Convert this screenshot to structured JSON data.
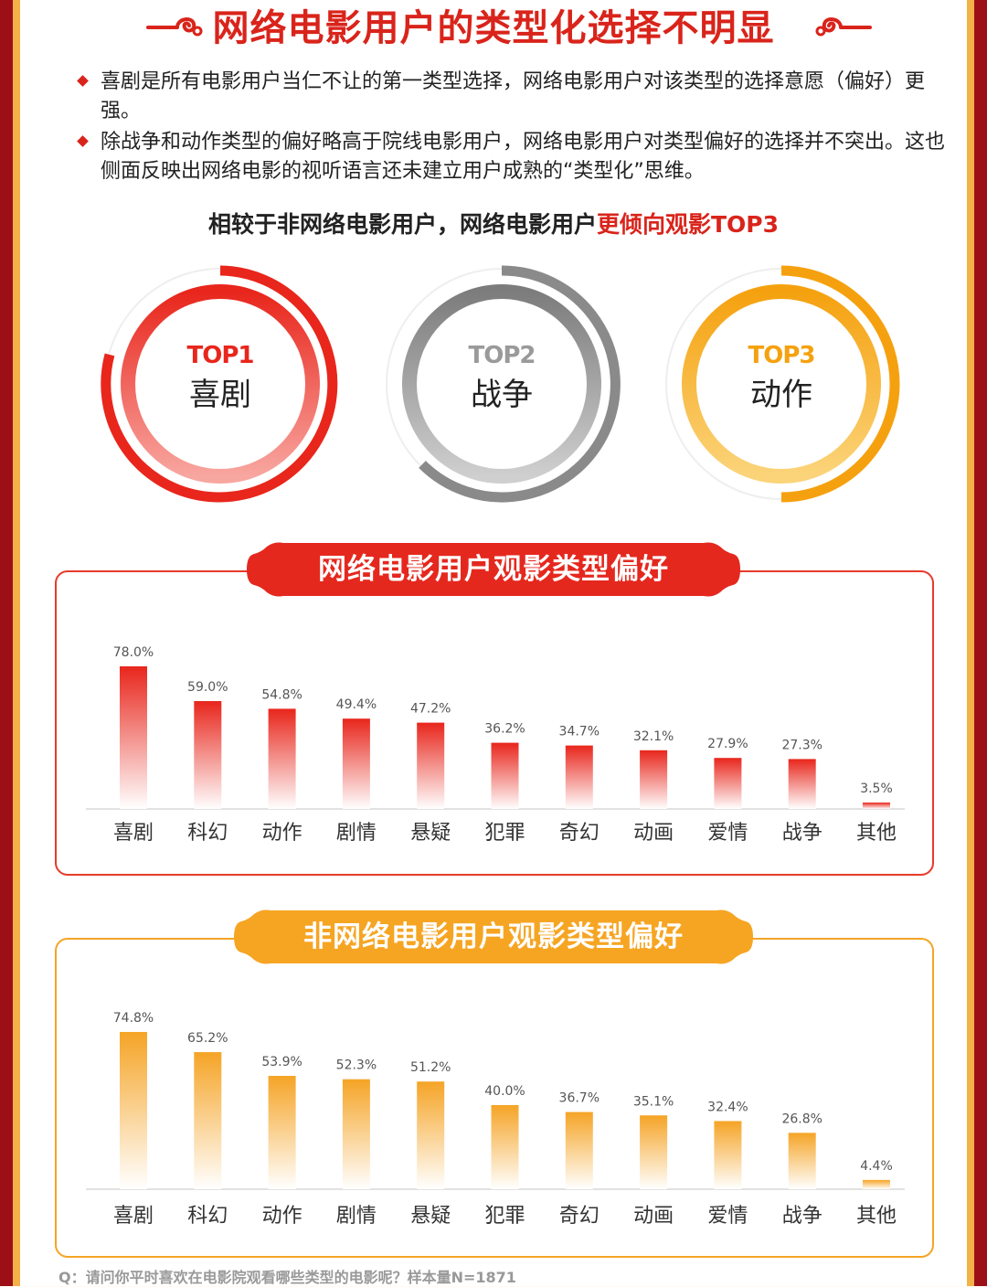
{
  "header": {
    "title": "网络电影用户的类型化选择不明显"
  },
  "bullets": [
    "喜剧是所有电影用户当仁不让的第一类型选择，网络电影用户对该类型的选择意愿（偏好）更强。",
    "除战争和动作类型的偏好略高于院线电影用户，网络电影用户对类型偏好的选择并不突出。这也侧面反映出网络电影的视听语言还未建立用户成熟的“类型化”思维。"
  ],
  "top3": {
    "heading_prefix": "相较于非网络电影用户，网络电影用户",
    "heading_highlight": "更倾向观影TOP3",
    "items": [
      {
        "rank": "TOP1",
        "name": "喜剧",
        "color": "#e8261c"
      },
      {
        "rank": "TOP2",
        "name": "战争",
        "color": "#8f8f8f"
      },
      {
        "rank": "TOP3",
        "name": "动作",
        "color": "#f5a10f"
      }
    ]
  },
  "colors": {
    "red": "#e8261c",
    "orange": "#f5a426",
    "gray": "#8f8f8f"
  },
  "chart_data": [
    {
      "type": "bar",
      "title": "网络电影用户观影类型偏好",
      "categories": [
        "喜剧",
        "科幻",
        "动作",
        "剧情",
        "悬疑",
        "犯罪",
        "奇幻",
        "动画",
        "爱情",
        "战争",
        "其他"
      ],
      "values": [
        78.0,
        59.0,
        54.8,
        49.4,
        47.2,
        36.2,
        34.7,
        32.1,
        27.9,
        27.3,
        3.5
      ],
      "labels": [
        "78.0%",
        "59.0%",
        "54.8%",
        "49.4%",
        "47.2%",
        "36.2%",
        "34.7%",
        "32.1%",
        "27.9%",
        "27.3%",
        "3.5%"
      ],
      "color": "#e8261c",
      "ylim": [
        0,
        100
      ],
      "grid": false
    },
    {
      "type": "bar",
      "title": "非网络电影用户观影类型偏好",
      "categories": [
        "喜剧",
        "科幻",
        "动作",
        "剧情",
        "悬疑",
        "犯罪",
        "奇幻",
        "动画",
        "爱情",
        "战争",
        "其他"
      ],
      "values": [
        74.8,
        65.2,
        53.9,
        52.3,
        51.2,
        40.0,
        36.7,
        35.1,
        32.4,
        26.8,
        4.4
      ],
      "labels": [
        "74.8%",
        "65.2%",
        "53.9%",
        "52.3%",
        "51.2%",
        "40.0%",
        "36.7%",
        "35.1%",
        "32.4%",
        "26.8%",
        "4.4%"
      ],
      "color": "#f5a426",
      "ylim": [
        0,
        100
      ],
      "grid": false
    }
  ],
  "footnote": "Q：请问你平时喜欢在电影院观看哪些类型的电影呢？样本量N=1871"
}
